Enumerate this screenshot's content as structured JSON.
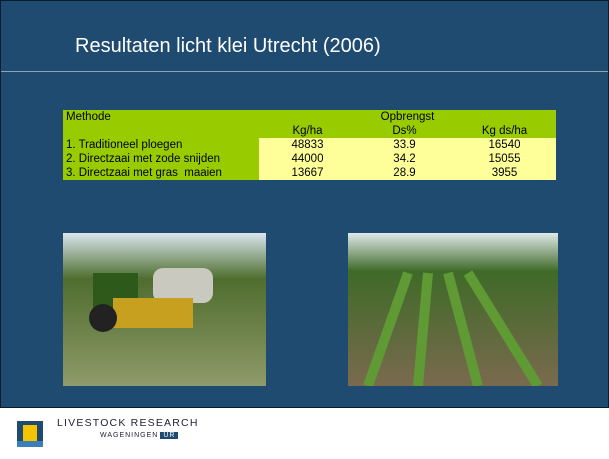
{
  "header": {
    "title": "Resultaten licht klei Utrecht (2006)"
  },
  "table": {
    "header_top": [
      "Methode",
      "Opbrengst"
    ],
    "columns": [
      "Kg/ha",
      "Ds%",
      "Kg ds/ha"
    ],
    "rows": [
      [
        "1. Traditioneel ploegen",
        48833,
        33.9,
        16540
      ],
      [
        "2. Directzaai met zode snijden",
        44000,
        34.2,
        15055
      ],
      [
        "3. Directzaai met gras  maaien",
        13667,
        28.9,
        3955
      ]
    ]
  },
  "footer": {
    "org": "LIVESTOCK RESEARCH",
    "sub": "WAGENINGEN",
    "ur": "UR"
  }
}
